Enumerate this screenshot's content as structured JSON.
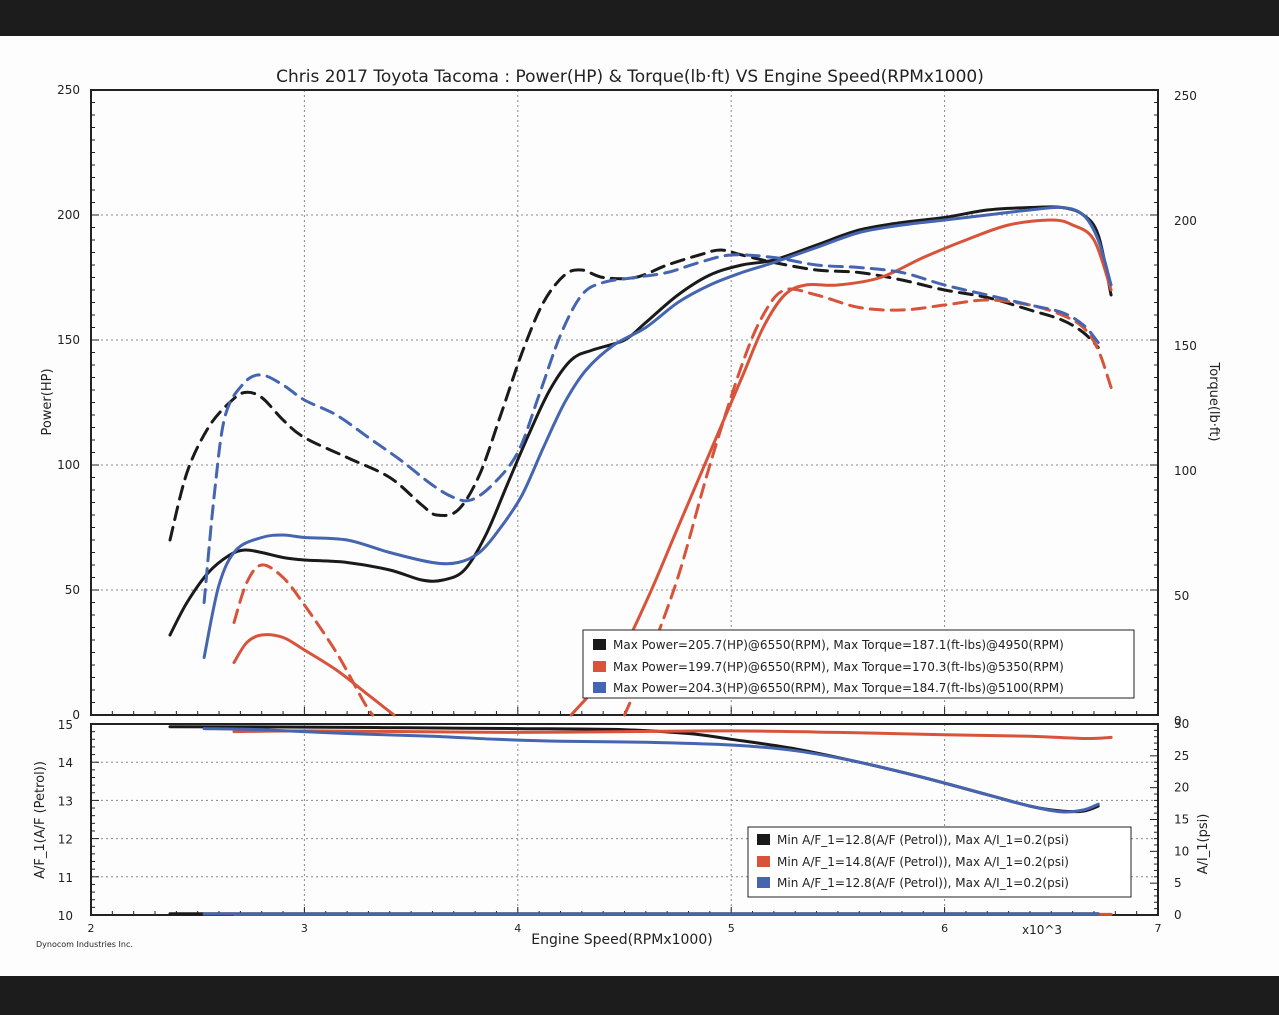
{
  "colors": {
    "black_run": "#1a1a1a",
    "orange_run": "#d9533a",
    "blue_run": "#4565b0",
    "grid": "#8a8a8a",
    "frame": "#222222"
  },
  "chart_data": [
    {
      "type": "line",
      "title": "Chris 2017 Toyota Tacoma : Power(HP) & Torque(lb·ft) VS Engine Speed(RPMx1000)",
      "xlabel": "Engine Speed(RPMx1000)",
      "x_multiplier": "x10^3",
      "ylabel": "Power(HP)",
      "y2label": "Torque(lb·ft)",
      "xlim": [
        2,
        7
      ],
      "ylim": [
        0,
        250
      ],
      "y2lim": [
        0,
        250
      ],
      "x_ticks": [
        "2",
        "3",
        "4",
        "5",
        "6",
        "7"
      ],
      "y_ticks": [
        "0",
        "50",
        "100",
        "150",
        "200",
        "250"
      ],
      "y2_ticks": [
        "0",
        "50",
        "100",
        "150",
        "200",
        "250"
      ],
      "grid": true,
      "legend_position": "bottom-right",
      "legend": [
        "Max Power=205.7(HP)@6550(RPM), Max Torque=187.1(ft-lbs)@4950(RPM)",
        "Max Power=199.7(HP)@6550(RPM), Max Torque=170.3(ft-lbs)@5350(RPM)",
        "Max Power=204.3(HP)@6550(RPM), Max Torque=184.7(ft-lbs)@5100(RPM)"
      ],
      "series": [
        {
          "run": 1,
          "measure": "power",
          "style": "solid",
          "color": "#1a1a1a",
          "points": [
            [
              2.37,
              32
            ],
            [
              2.45,
              45
            ],
            [
              2.55,
              57
            ],
            [
              2.65,
              64
            ],
            [
              2.72,
              66
            ],
            [
              2.8,
              65
            ],
            [
              2.9,
              63
            ],
            [
              3.0,
              62
            ],
            [
              3.2,
              61
            ],
            [
              3.4,
              58
            ],
            [
              3.55,
              54
            ],
            [
              3.65,
              54
            ],
            [
              3.75,
              58
            ],
            [
              3.85,
              72
            ],
            [
              3.95,
              92
            ],
            [
              4.05,
              112
            ],
            [
              4.15,
              130
            ],
            [
              4.25,
              142
            ],
            [
              4.35,
              146
            ],
            [
              4.5,
              150
            ],
            [
              4.6,
              157
            ],
            [
              4.75,
              168
            ],
            [
              4.9,
              176
            ],
            [
              5.05,
              180
            ],
            [
              5.2,
              182
            ],
            [
              5.4,
              188
            ],
            [
              5.6,
              194
            ],
            [
              5.8,
              197
            ],
            [
              6.0,
              199
            ],
            [
              6.2,
              202
            ],
            [
              6.4,
              203
            ],
            [
              6.55,
              203
            ],
            [
              6.65,
              200
            ],
            [
              6.72,
              192
            ],
            [
              6.78,
              168
            ]
          ]
        },
        {
          "run": 1,
          "measure": "torque",
          "style": "dashed",
          "color": "#1a1a1a",
          "points": [
            [
              2.37,
              70
            ],
            [
              2.45,
              97
            ],
            [
              2.55,
              115
            ],
            [
              2.65,
              125
            ],
            [
              2.72,
              129
            ],
            [
              2.8,
              127
            ],
            [
              2.9,
              118
            ],
            [
              3.0,
              111
            ],
            [
              3.2,
              103
            ],
            [
              3.4,
              95
            ],
            [
              3.55,
              84
            ],
            [
              3.62,
              80
            ],
            [
              3.72,
              82
            ],
            [
              3.82,
              96
            ],
            [
              3.92,
              120
            ],
            [
              4.02,
              145
            ],
            [
              4.12,
              165
            ],
            [
              4.22,
              176
            ],
            [
              4.3,
              178
            ],
            [
              4.4,
              175
            ],
            [
              4.55,
              175
            ],
            [
              4.7,
              180
            ],
            [
              4.85,
              184
            ],
            [
              4.95,
              186
            ],
            [
              5.05,
              184
            ],
            [
              5.2,
              181
            ],
            [
              5.4,
              178
            ],
            [
              5.6,
              177
            ],
            [
              5.8,
              174
            ],
            [
              6.0,
              170
            ],
            [
              6.2,
              167
            ],
            [
              6.4,
              162
            ],
            [
              6.55,
              158
            ],
            [
              6.65,
              153
            ],
            [
              6.72,
              147
            ]
          ]
        },
        {
          "run": 2,
          "measure": "power",
          "style": "solid",
          "color": "#d9533a",
          "points": [
            [
              2.67,
              21
            ],
            [
              2.73,
              29
            ],
            [
              2.8,
              32
            ],
            [
              2.9,
              31
            ],
            [
              3.0,
              26
            ],
            [
              3.15,
              18
            ],
            [
              3.3,
              8
            ],
            [
              3.42,
              0
            ]
          ]
        },
        {
          "run": 2,
          "measure": "power",
          "style": "solid",
          "color": "#d9533a",
          "points": [
            [
              4.25,
              0
            ],
            [
              4.45,
              20
            ],
            [
              4.6,
              45
            ],
            [
              4.75,
              75
            ],
            [
              4.9,
              105
            ],
            [
              5.05,
              135
            ],
            [
              5.15,
              155
            ],
            [
              5.25,
              168
            ],
            [
              5.35,
              172
            ],
            [
              5.5,
              172
            ],
            [
              5.7,
              175
            ],
            [
              5.9,
              183
            ],
            [
              6.1,
              190
            ],
            [
              6.3,
              196
            ],
            [
              6.5,
              198
            ],
            [
              6.6,
              196
            ],
            [
              6.7,
              190
            ],
            [
              6.78,
              170
            ]
          ]
        },
        {
          "run": 2,
          "measure": "torque",
          "style": "dashed",
          "color": "#d9533a",
          "points": [
            [
              2.67,
              37
            ],
            [
              2.73,
              53
            ],
            [
              2.8,
              60
            ],
            [
              2.9,
              55
            ],
            [
              3.0,
              44
            ],
            [
              3.15,
              25
            ],
            [
              3.28,
              5
            ],
            [
              3.32,
              0
            ]
          ]
        },
        {
          "run": 2,
          "measure": "torque",
          "style": "dashed",
          "color": "#d9533a",
          "points": [
            [
              4.5,
              0
            ],
            [
              4.6,
              20
            ],
            [
              4.75,
              55
            ],
            [
              4.9,
              100
            ],
            [
              5.05,
              140
            ],
            [
              5.15,
              160
            ],
            [
              5.25,
              170
            ],
            [
              5.4,
              168
            ],
            [
              5.6,
              163
            ],
            [
              5.8,
              162
            ],
            [
              6.0,
              164
            ],
            [
              6.2,
              166
            ],
            [
              6.4,
              164
            ],
            [
              6.55,
              160
            ],
            [
              6.65,
              155
            ],
            [
              6.72,
              146
            ],
            [
              6.78,
              131
            ]
          ]
        },
        {
          "run": 3,
          "measure": "power",
          "style": "solid",
          "color": "#4565b0",
          "points": [
            [
              2.53,
              23
            ],
            [
              2.6,
              52
            ],
            [
              2.68,
              66
            ],
            [
              2.8,
              71
            ],
            [
              2.9,
              72
            ],
            [
              3.0,
              71
            ],
            [
              3.2,
              70
            ],
            [
              3.4,
              65
            ],
            [
              3.6,
              61
            ],
            [
              3.72,
              61
            ],
            [
              3.82,
              65
            ],
            [
              3.92,
              75
            ],
            [
              4.02,
              88
            ],
            [
              4.12,
              107
            ],
            [
              4.22,
              125
            ],
            [
              4.32,
              138
            ],
            [
              4.45,
              148
            ],
            [
              4.6,
              155
            ],
            [
              4.75,
              165
            ],
            [
              4.9,
              172
            ],
            [
              5.05,
              177
            ],
            [
              5.2,
              181
            ],
            [
              5.4,
              187
            ],
            [
              5.6,
              193
            ],
            [
              5.8,
              196
            ],
            [
              6.0,
              198
            ],
            [
              6.2,
              200
            ],
            [
              6.4,
              202
            ],
            [
              6.55,
              203
            ],
            [
              6.65,
              200
            ],
            [
              6.72,
              190
            ],
            [
              6.78,
              172
            ]
          ]
        },
        {
          "run": 3,
          "measure": "torque",
          "style": "dashed",
          "color": "#4565b0",
          "points": [
            [
              2.53,
              45
            ],
            [
              2.58,
              90
            ],
            [
              2.63,
              120
            ],
            [
              2.72,
              133
            ],
            [
              2.8,
              136
            ],
            [
              2.9,
              132
            ],
            [
              3.0,
              126
            ],
            [
              3.15,
              120
            ],
            [
              3.3,
              111
            ],
            [
              3.45,
              102
            ],
            [
              3.6,
              92
            ],
            [
              3.7,
              87
            ],
            [
              3.78,
              86
            ],
            [
              3.88,
              92
            ],
            [
              4.0,
              105
            ],
            [
              4.1,
              128
            ],
            [
              4.2,
              152
            ],
            [
              4.3,
              168
            ],
            [
              4.4,
              173
            ],
            [
              4.55,
              175
            ],
            [
              4.7,
              177
            ],
            [
              4.85,
              181
            ],
            [
              5.0,
              184
            ],
            [
              5.2,
              183
            ],
            [
              5.4,
              180
            ],
            [
              5.6,
              179
            ],
            [
              5.8,
              177
            ],
            [
              6.0,
              172
            ],
            [
              6.2,
              168
            ],
            [
              6.4,
              164
            ],
            [
              6.55,
              161
            ],
            [
              6.65,
              156
            ],
            [
              6.72,
              149
            ]
          ]
        }
      ]
    },
    {
      "type": "line",
      "ylabel": "A/F_1(A/F (Petrol))",
      "y2label": "A/I_1(psi)",
      "xlim": [
        2,
        7
      ],
      "ylim": [
        10,
        15
      ],
      "y2lim": [
        0,
        30
      ],
      "y_ticks": [
        "10",
        "11",
        "12",
        "13",
        "14",
        "15"
      ],
      "y2_ticks": [
        "0",
        "5",
        "10",
        "15",
        "20",
        "25",
        "30"
      ],
      "grid": true,
      "legend_position": "bottom-right",
      "legend": [
        "Min A/F_1=12.8(A/F (Petrol)), Max A/I_1=0.2(psi)",
        "Min A/F_1=14.8(A/F (Petrol)), Max A/I_1=0.2(psi)",
        "Min A/F_1=12.8(A/F (Petrol)), Max A/I_1=0.2(psi)"
      ],
      "series": [
        {
          "run": 1,
          "measure": "A/F",
          "color": "#1a1a1a",
          "points": [
            [
              2.37,
              14.93
            ],
            [
              3.0,
              14.92
            ],
            [
              3.5,
              14.9
            ],
            [
              4.0,
              14.88
            ],
            [
              4.5,
              14.85
            ],
            [
              4.8,
              14.75
            ],
            [
              5.0,
              14.6
            ],
            [
              5.3,
              14.35
            ],
            [
              5.6,
              14.0
            ],
            [
              5.9,
              13.6
            ],
            [
              6.2,
              13.15
            ],
            [
              6.4,
              12.85
            ],
            [
              6.55,
              12.72
            ],
            [
              6.65,
              12.72
            ],
            [
              6.72,
              12.85
            ]
          ]
        },
        {
          "run": 2,
          "measure": "A/F",
          "color": "#d9533a",
          "points": [
            [
              2.67,
              14.8
            ],
            [
              3.0,
              14.82
            ],
            [
              3.5,
              14.8
            ],
            [
              4.0,
              14.78
            ],
            [
              4.5,
              14.8
            ],
            [
              5.0,
              14.82
            ],
            [
              5.5,
              14.78
            ],
            [
              6.0,
              14.72
            ],
            [
              6.4,
              14.68
            ],
            [
              6.65,
              14.62
            ],
            [
              6.78,
              14.65
            ]
          ]
        },
        {
          "run": 3,
          "measure": "A/F",
          "color": "#4565b0",
          "points": [
            [
              2.53,
              14.88
            ],
            [
              2.8,
              14.85
            ],
            [
              3.2,
              14.75
            ],
            [
              3.6,
              14.68
            ],
            [
              3.9,
              14.6
            ],
            [
              4.2,
              14.55
            ],
            [
              4.6,
              14.52
            ],
            [
              5.0,
              14.45
            ],
            [
              5.3,
              14.3
            ],
            [
              5.6,
              14.0
            ],
            [
              5.9,
              13.6
            ],
            [
              6.2,
              13.15
            ],
            [
              6.4,
              12.85
            ],
            [
              6.55,
              12.7
            ],
            [
              6.65,
              12.75
            ],
            [
              6.72,
              12.9
            ]
          ]
        },
        {
          "run": 1,
          "measure": "A/I",
          "color": "#1a1a1a",
          "points": [
            [
              2.37,
              0.2
            ],
            [
              4.0,
              0.2
            ],
            [
              6.72,
              0.2
            ]
          ]
        },
        {
          "run": 2,
          "measure": "A/I",
          "color": "#d9533a",
          "points": [
            [
              2.67,
              0.1
            ],
            [
              4.5,
              0.1
            ],
            [
              6.78,
              0.1
            ]
          ]
        },
        {
          "run": 3,
          "measure": "A/I",
          "color": "#4565b0",
          "points": [
            [
              2.53,
              0.15
            ],
            [
              5.0,
              0.15
            ],
            [
              6.72,
              0.15
            ]
          ]
        }
      ]
    }
  ],
  "footer": {
    "credit": "Dynocom Industries Inc."
  }
}
